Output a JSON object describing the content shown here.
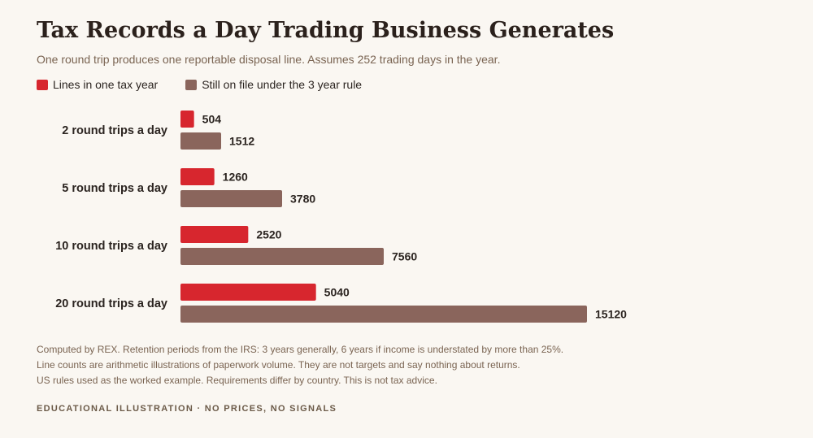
{
  "header": {
    "title": "Tax Records a Day Trading Business Generates",
    "subtitle": "One round trip produces one reportable disposal line. Assumes 252 trading days in the year."
  },
  "legend": {
    "items": [
      {
        "label": "Lines in one tax year",
        "color": "#d7262e"
      },
      {
        "label": "Still on file under the 3 year rule",
        "color": "#8a655c"
      }
    ]
  },
  "chart_data": {
    "type": "bar",
    "orientation": "horizontal",
    "categories": [
      "2 round trips a day",
      "5 round trips a day",
      "10 round trips a day",
      "20 round trips a day"
    ],
    "series": [
      {
        "name": "Lines in one tax year",
        "color": "#d7262e",
        "values": [
          504,
          1260,
          2520,
          5040
        ]
      },
      {
        "name": "Still on file under the 3 year rule",
        "color": "#8a655c",
        "values": [
          1512,
          3780,
          7560,
          15120
        ]
      }
    ],
    "xlim": [
      0,
      15120
    ],
    "grid": false,
    "legend_position": "top-left",
    "data_labels": true
  },
  "footnotes": [
    "Computed by REX. Retention periods from the IRS: 3 years generally, 6 years if income is understated by more than 25%.",
    "Line counts are arithmetic illustrations of paperwork volume. They are not targets and say nothing about returns.",
    "US rules used as the worked example. Requirements differ by country. This is not tax advice."
  ],
  "tagline": "EDUCATIONAL ILLUSTRATION · NO PRICES, NO SIGNALS"
}
